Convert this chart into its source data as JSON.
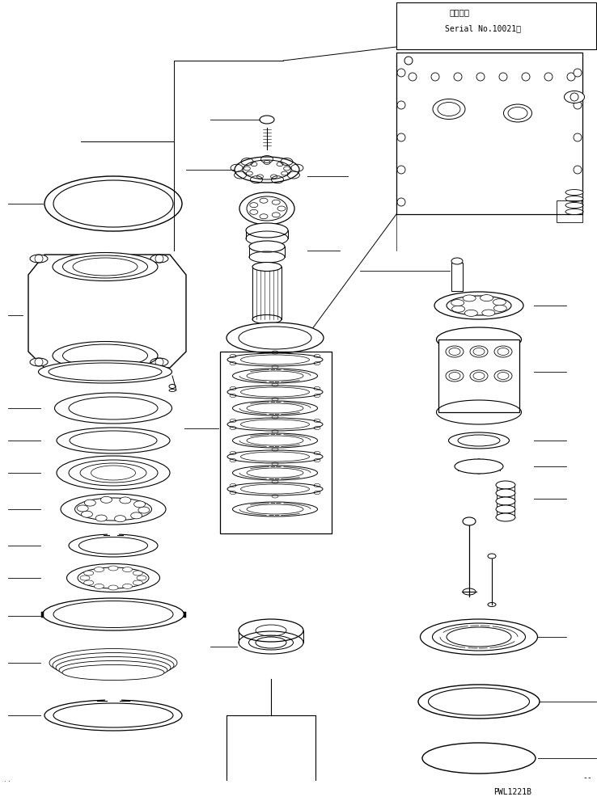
{
  "title_jp": "適用号機",
  "title_en": "Serial No.10021～",
  "part_code": "PWL1221B",
  "bg_color": "#ffffff",
  "line_color": "#000000",
  "fig_width": 7.38,
  "fig_height": 9.91,
  "dpi": 100,
  "lw_heavy": 1.0,
  "lw_med": 0.7,
  "lw_light": 0.5
}
